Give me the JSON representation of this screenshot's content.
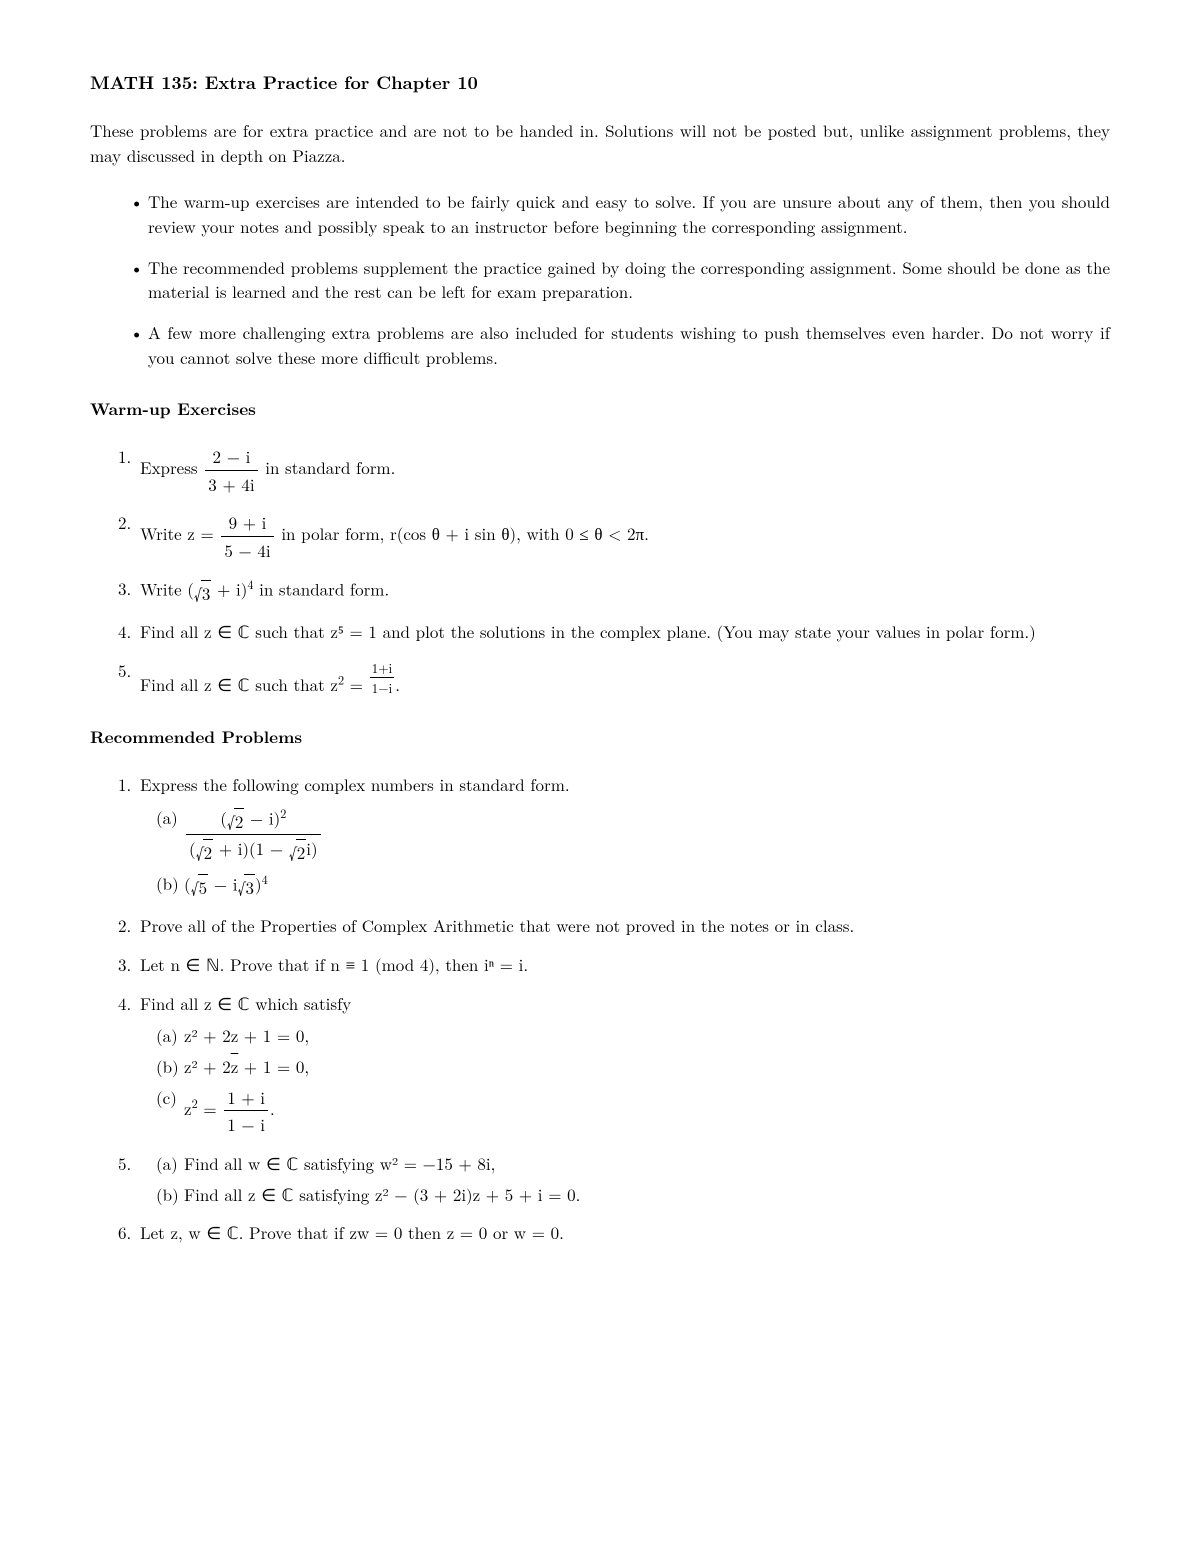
{
  "title": "MATH 135: Extra Practice for Chapter 10",
  "intro": "These problems are for extra practice and are not to be handed in. Solutions will not be posted but, unlike assignment problems, they may discussed in depth on Piazza.",
  "bullets": [
    "The warm-up exercises are intended to be fairly quick and easy to solve. If you are unsure about any of them, then you should review your notes and possibly speak to an instructor before beginning the corresponding assignment.",
    "The recommended problems supplement the practice gained by doing the corresponding assignment. Some should be done as the material is learned and the rest can be left for exam preparation.",
    "A few more challenging extra problems are also included for students wishing to push themselves even harder. Do not worry if you cannot solve these more difficult problems."
  ],
  "warmup_head": "Warm-up Exercises",
  "warmup": {
    "w1_a": "Express ",
    "w1_num": "2 − i",
    "w1_den": "3 + 4i",
    "w1_b": " in standard form.",
    "w2_a": "Write z = ",
    "w2_num": "9 + i",
    "w2_den": "5 − 4i",
    "w2_b": " in polar form, r(cos θ + i sin θ), with 0 ≤ θ < 2π.",
    "w3_a": "Write (",
    "w3_sqrt": "3",
    "w3_b": " + i)",
    "w3_sup": "4",
    "w3_c": " in standard form.",
    "w4": "Find all z ∈ ℂ such that z⁵ = 1 and plot the solutions in the complex plane. (You may state your values in polar form.)",
    "w5_a": "Find all z ∈ ℂ such that z",
    "w5_sup": "2",
    "w5_b": " = ",
    "w5_num": "1+i",
    "w5_den": "1−i",
    "w5_c": "."
  },
  "rec_head": "Recommended Problems",
  "rec": {
    "r1_a": "Express the following complex numbers in standard form.",
    "r1a_num_a": "(",
    "r1a_num_sqrt": "2",
    "r1a_num_b": " − i)",
    "r1a_num_sup": "2",
    "r1a_den_a": "(",
    "r1a_den_sqrt1": "2",
    "r1a_den_b": " + i)(1 − ",
    "r1a_den_sqrt2": "2",
    "r1a_den_c": "i)",
    "r1b_a": "(",
    "r1b_sqrt1": "5",
    "r1b_b": " − i",
    "r1b_sqrt2": "3",
    "r1b_c": ")",
    "r1b_sup": "4",
    "r2": "Prove all of the Properties of Complex Arithmetic that were not proved in the notes or in class.",
    "r3": "Let n ∈ ℕ. Prove that if n ≡ 1 (mod 4), then iⁿ = i.",
    "r4": "Find all z ∈ ℂ which satisfy",
    "r4a": "z² + 2z + 1 = 0,",
    "r4b_a": "z² + 2",
    "r4b_ov": "z",
    "r4b_b": " + 1 = 0,",
    "r4c_a": "z",
    "r4c_sup": "2",
    "r4c_b": " = ",
    "r4c_num": "1 + i",
    "r4c_den": "1 − i",
    "r4c_c": ".",
    "r5a": "Find all w ∈ ℂ satisfying w² = −15 + 8i,",
    "r5b": "Find all z ∈ ℂ satisfying z² − (3 + 2i)z + 5 + i = 0.",
    "r6": "Let z, w ∈ ℂ. Prove that if zw = 0 then z = 0 or w = 0."
  }
}
